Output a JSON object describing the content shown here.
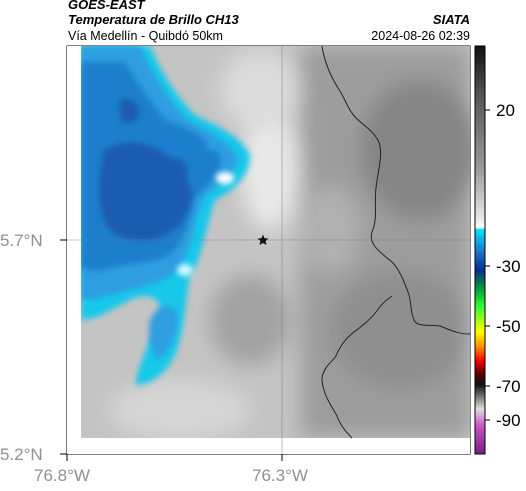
{
  "header": {
    "satellite": "GOES-EAST",
    "product": "Temperatura de Brillo CH13",
    "organization": "SIATA",
    "region": "Vía Medellín - Quibdó 50km",
    "datetime": "2024-08-26 02:39"
  },
  "axes": {
    "lat_labels": [
      "5.7°N",
      "5.2°N"
    ],
    "lon_labels": [
      "76.8°W",
      "76.3°W"
    ]
  },
  "colorbar": {
    "tick_labels": [
      "20",
      "-30",
      "-50",
      "-70",
      "-90"
    ],
    "tick_values": [
      20,
      -30,
      -50,
      -70,
      -90
    ],
    "range": [
      -95,
      45
    ]
  },
  "map": {
    "marker": "star-icon",
    "colors": {
      "deep_cold": "#1d5bb0",
      "cold": "#1a7fcc",
      "cool": "#2f9ee0",
      "cyan": "#19c8ea",
      "background_gray": "#bdbdbd",
      "warm_gray": "#8c8c8c",
      "border": "#222222"
    }
  }
}
